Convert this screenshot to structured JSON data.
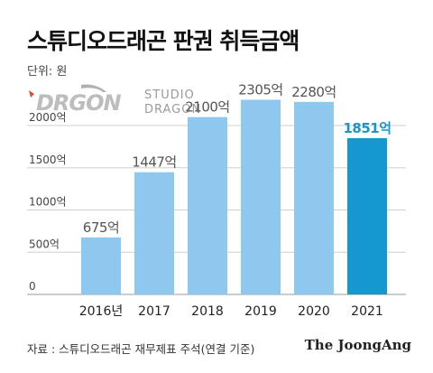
{
  "header": {
    "title": "스튜디오드래곤 판권 취득금액",
    "unit": "단위: 원"
  },
  "logo": {
    "mark_text": "DRGON",
    "line1": "STUDIO",
    "line2": "DRAGON"
  },
  "chart_data": {
    "type": "bar",
    "categories": [
      "2016년",
      "2017",
      "2018",
      "2019",
      "2020",
      "2021"
    ],
    "values": [
      675,
      1447,
      2100,
      2305,
      2280,
      1851
    ],
    "value_labels": [
      "675억",
      "1447억",
      "2100억",
      "2305억",
      "2280억",
      "1851억"
    ],
    "y_ticks": [
      0,
      500,
      1000,
      1500,
      2000
    ],
    "y_tick_labels": [
      "0",
      "500억",
      "1000억",
      "1500억",
      "2000억"
    ],
    "ylim": [
      0,
      2500
    ],
    "grid": true,
    "colors": {
      "bar": "#8ec8ef",
      "highlight_bar": "#1597d0",
      "value_label": "#555555",
      "highlight_label": "#1597d0",
      "grid": "#cfcfcf"
    },
    "highlight_index": 5
  },
  "footer": {
    "source": "자료 : 스튜디오드래곤 재무제표 주석(연결 기준)",
    "credit": "The JoongAng"
  }
}
